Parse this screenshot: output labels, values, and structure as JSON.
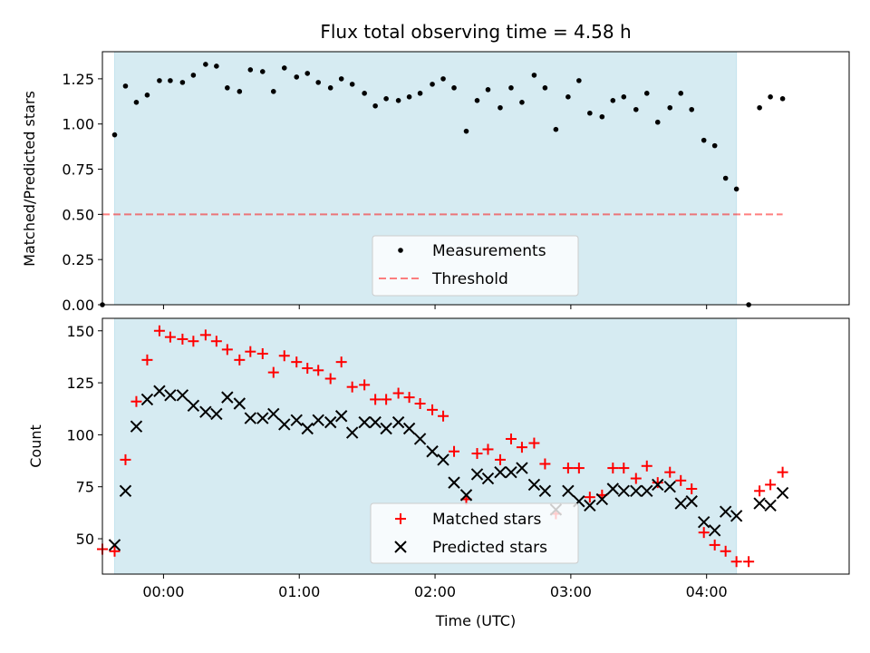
{
  "chart_data": [
    {
      "type": "scatter",
      "title": "Flux total observing time = 4.58 h",
      "xlabel": "",
      "ylabel": "Matched/Predicted stars",
      "xlim": [
        -0.45,
        5.05
      ],
      "ylim": [
        0,
        1.4
      ],
      "yticks": [
        "0.00",
        "0.25",
        "0.50",
        "0.75",
        "1.00",
        "1.25"
      ],
      "shaded_span": [
        -0.36,
        4.22
      ],
      "legend_location": "lower-center",
      "legend": {
        "measurements": "Measurements",
        "threshold": "Threshold"
      },
      "threshold": {
        "value": 0.5,
        "x_range": [
          -0.45,
          4.56
        ]
      },
      "series": [
        {
          "name": "Measurements",
          "x": [
            -0.45,
            -0.36,
            -0.28,
            -0.2,
            -0.12,
            -0.03,
            0.05,
            0.14,
            0.22,
            0.31,
            0.39,
            0.47,
            0.56,
            0.64,
            0.73,
            0.81,
            0.89,
            0.98,
            1.06,
            1.14,
            1.23,
            1.31,
            1.39,
            1.48,
            1.56,
            1.64,
            1.73,
            1.81,
            1.89,
            1.98,
            2.06,
            2.14,
            2.23,
            2.31,
            2.39,
            2.48,
            2.56,
            2.64,
            2.73,
            2.81,
            2.89,
            2.98,
            3.06,
            3.14,
            3.23,
            3.31,
            3.39,
            3.48,
            3.56,
            3.64,
            3.73,
            3.81,
            3.89,
            3.98,
            4.06,
            4.14,
            4.22,
            4.31,
            4.39,
            4.47,
            4.56
          ],
          "y": [
            0.0,
            0.94,
            1.21,
            1.12,
            1.16,
            1.24,
            1.24,
            1.23,
            1.27,
            1.33,
            1.32,
            1.2,
            1.18,
            1.3,
            1.29,
            1.18,
            1.31,
            1.26,
            1.28,
            1.23,
            1.2,
            1.25,
            1.22,
            1.17,
            1.1,
            1.14,
            1.13,
            1.15,
            1.17,
            1.22,
            1.25,
            1.2,
            0.96,
            1.13,
            1.19,
            1.09,
            1.2,
            1.12,
            1.27,
            1.2,
            0.97,
            1.15,
            1.24,
            1.06,
            1.04,
            1.13,
            1.15,
            1.08,
            1.17,
            1.01,
            1.09,
            1.17,
            1.08,
            0.91,
            0.88,
            0.7,
            0.64,
            0.0,
            1.09,
            1.15,
            1.14
          ]
        }
      ]
    },
    {
      "type": "scatter",
      "title": "",
      "xlabel": "Time (UTC)",
      "ylabel": "Count",
      "xlim": [
        -0.45,
        5.05
      ],
      "ylim": [
        33,
        156
      ],
      "yticks": [
        "50",
        "75",
        "100",
        "125",
        "150"
      ],
      "xticks": [
        "00:00",
        "01:00",
        "02:00",
        "03:00",
        "04:00"
      ],
      "shaded_span": [
        -0.36,
        4.22
      ],
      "legend_location": "lower-center",
      "series": [
        {
          "name": "Matched stars",
          "marker": "plus",
          "color": "#ff0000",
          "x": [
            -0.45,
            -0.36,
            -0.28,
            -0.2,
            -0.12,
            -0.03,
            0.05,
            0.14,
            0.22,
            0.31,
            0.39,
            0.47,
            0.56,
            0.64,
            0.73,
            0.81,
            0.89,
            0.98,
            1.06,
            1.14,
            1.23,
            1.31,
            1.39,
            1.48,
            1.56,
            1.64,
            1.73,
            1.81,
            1.89,
            1.98,
            2.06,
            2.14,
            2.23,
            2.31,
            2.39,
            2.48,
            2.56,
            2.64,
            2.73,
            2.81,
            2.89,
            2.98,
            3.06,
            3.14,
            3.23,
            3.31,
            3.39,
            3.48,
            3.56,
            3.64,
            3.73,
            3.81,
            3.89,
            3.98,
            4.06,
            4.14,
            4.22,
            4.31,
            4.39,
            4.47,
            4.56
          ],
          "y": [
            45,
            44,
            88,
            116,
            136,
            150,
            147,
            146,
            145,
            148,
            145,
            141,
            136,
            140,
            139,
            130,
            138,
            135,
            132,
            131,
            127,
            135,
            123,
            124,
            117,
            117,
            120,
            118,
            115,
            112,
            109,
            92,
            69,
            91,
            93,
            88,
            98,
            94,
            96,
            86,
            62,
            84,
            84,
            70,
            71,
            84,
            84,
            79,
            85,
            77,
            82,
            78,
            74,
            53,
            47,
            44,
            39,
            39,
            73,
            76,
            82
          ]
        },
        {
          "name": "Predicted stars",
          "marker": "x",
          "color": "#000000",
          "x": [
            -0.36,
            -0.28,
            -0.2,
            -0.12,
            -0.03,
            0.05,
            0.14,
            0.22,
            0.31,
            0.39,
            0.47,
            0.56,
            0.64,
            0.73,
            0.81,
            0.89,
            0.98,
            1.06,
            1.14,
            1.23,
            1.31,
            1.39,
            1.48,
            1.56,
            1.64,
            1.73,
            1.81,
            1.89,
            1.98,
            2.06,
            2.14,
            2.23,
            2.31,
            2.39,
            2.48,
            2.56,
            2.64,
            2.73,
            2.81,
            2.89,
            2.98,
            3.06,
            3.14,
            3.23,
            3.31,
            3.39,
            3.48,
            3.56,
            3.64,
            3.73,
            3.81,
            3.89,
            3.98,
            4.06,
            4.14,
            4.22,
            4.39,
            4.47,
            4.56
          ],
          "y": [
            47,
            73,
            104,
            117,
            121,
            119,
            119,
            114,
            111,
            110,
            118,
            115,
            108,
            108,
            110,
            105,
            107,
            103,
            107,
            106,
            109,
            101,
            106,
            106,
            103,
            106,
            103,
            98,
            92,
            88,
            77,
            71,
            81,
            79,
            82,
            82,
            84,
            76,
            73,
            64,
            73,
            68,
            66,
            69,
            74,
            73,
            73,
            73,
            76,
            75,
            67,
            68,
            58,
            54,
            63,
            61,
            67,
            66,
            72
          ]
        }
      ]
    }
  ]
}
